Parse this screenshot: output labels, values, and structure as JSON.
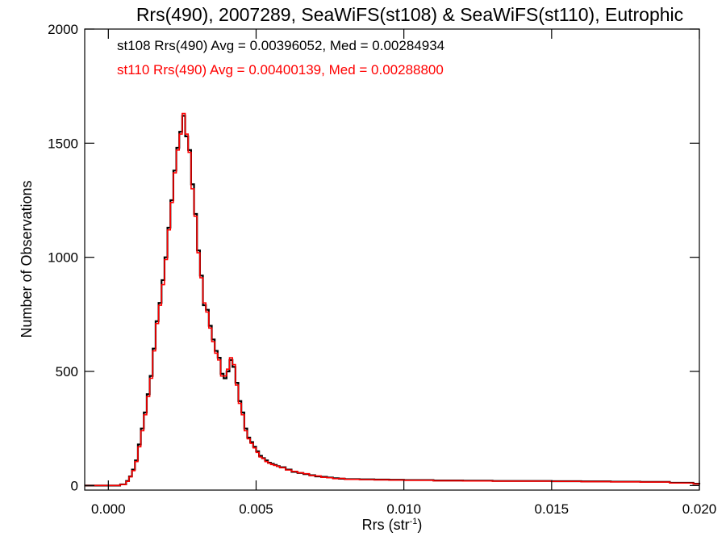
{
  "chart_data": {
    "type": "line",
    "style": "step-histogram",
    "title": "Rrs(490), 2007289, SeaWiFS(st108) & SeaWiFS(st110), Eutrophic",
    "xlabel": "Rrs (str",
    "xlabel_sup": "-1",
    "xlabel_close": ")",
    "ylabel": "Number of Observations",
    "xlim": [
      -0.0008,
      0.02
    ],
    "ylim": [
      -20,
      2000
    ],
    "x_ticks": [
      0.0,
      0.005,
      0.01,
      0.015,
      0.02
    ],
    "x_tick_labels": [
      "0.000",
      "0.005",
      "0.010",
      "0.015",
      "0.020"
    ],
    "y_ticks": [
      0,
      500,
      1000,
      1500,
      2000
    ],
    "y_tick_labels": [
      "0",
      "500",
      "1000",
      "1500",
      "2000"
    ],
    "grid": false,
    "annotations": [
      {
        "text": "st108 Rrs(490) Avg = 0.00396052, Med = 0.00284934",
        "color": "#000000"
      },
      {
        "text": "st110 Rrs(490) Avg = 0.00400139, Med = 0.00288800",
        "color": "#ff0000"
      }
    ],
    "series": [
      {
        "color": "#000000",
        "x": [
          -0.0008,
          0.0004,
          0.0006,
          0.0007,
          0.0008,
          0.0009,
          0.001,
          0.0011,
          0.0012,
          0.0013,
          0.0014,
          0.0015,
          0.0016,
          0.0017,
          0.0018,
          0.0019,
          0.002,
          0.0021,
          0.0022,
          0.0023,
          0.0024,
          0.0025,
          0.0026,
          0.0027,
          0.0028,
          0.0029,
          0.003,
          0.0031,
          0.0032,
          0.0033,
          0.0034,
          0.0035,
          0.0036,
          0.0037,
          0.0038,
          0.0039,
          0.004,
          0.0041,
          0.0042,
          0.0043,
          0.0044,
          0.0045,
          0.0046,
          0.0047,
          0.0048,
          0.0049,
          0.005,
          0.0051,
          0.0052,
          0.0053,
          0.0054,
          0.0055,
          0.0056,
          0.0057,
          0.0058,
          0.006,
          0.0062,
          0.0064,
          0.0066,
          0.0068,
          0.007,
          0.0072,
          0.0074,
          0.0076,
          0.0078,
          0.008,
          0.0085,
          0.009,
          0.0095,
          0.01,
          0.011,
          0.012,
          0.013,
          0.014,
          0.015,
          0.016,
          0.017,
          0.018,
          0.019,
          0.0198,
          0.02
        ],
        "y": [
          0,
          5,
          20,
          40,
          70,
          110,
          180,
          250,
          320,
          400,
          480,
          600,
          720,
          800,
          900,
          1000,
          1130,
          1250,
          1380,
          1480,
          1550,
          1620,
          1530,
          1470,
          1320,
          1190,
          1030,
          920,
          790,
          770,
          700,
          640,
          590,
          560,
          490,
          470,
          500,
          550,
          520,
          450,
          370,
          320,
          250,
          210,
          190,
          170,
          150,
          130,
          120,
          110,
          100,
          95,
          90,
          85,
          80,
          70,
          60,
          55,
          50,
          45,
          40,
          38,
          35,
          32,
          30,
          28,
          27,
          26,
          25,
          24,
          22,
          21,
          20,
          20,
          19,
          18,
          17,
          16,
          12,
          8,
          6
        ]
      },
      {
        "color": "#ff0000",
        "x": [
          -0.0008,
          0.0004,
          0.0006,
          0.0007,
          0.0008,
          0.0009,
          0.001,
          0.0011,
          0.0012,
          0.0013,
          0.0014,
          0.0015,
          0.0016,
          0.0017,
          0.0018,
          0.0019,
          0.002,
          0.0021,
          0.0022,
          0.0023,
          0.0024,
          0.0025,
          0.0026,
          0.0027,
          0.0028,
          0.0029,
          0.003,
          0.0031,
          0.0032,
          0.0033,
          0.0034,
          0.0035,
          0.0036,
          0.0037,
          0.0038,
          0.0039,
          0.004,
          0.0041,
          0.0042,
          0.0043,
          0.0044,
          0.0045,
          0.0046,
          0.0047,
          0.0048,
          0.0049,
          0.005,
          0.0051,
          0.0052,
          0.0053,
          0.0054,
          0.0055,
          0.0056,
          0.0057,
          0.0058,
          0.006,
          0.0062,
          0.0064,
          0.0066,
          0.0068,
          0.007,
          0.0072,
          0.0074,
          0.0076,
          0.0078,
          0.008,
          0.0085,
          0.009,
          0.0095,
          0.01,
          0.011,
          0.012,
          0.013,
          0.014,
          0.015,
          0.016,
          0.017,
          0.018,
          0.019,
          0.0198,
          0.02
        ],
        "y": [
          0,
          4,
          18,
          38,
          65,
          105,
          170,
          240,
          310,
          390,
          470,
          590,
          710,
          790,
          880,
          990,
          1120,
          1240,
          1370,
          1470,
          1540,
          1630,
          1540,
          1460,
          1300,
          1180,
          1020,
          910,
          800,
          760,
          690,
          630,
          580,
          550,
          480,
          480,
          510,
          560,
          530,
          440,
          360,
          310,
          240,
          205,
          185,
          165,
          145,
          125,
          118,
          105,
          98,
          92,
          88,
          84,
          78,
          68,
          62,
          56,
          52,
          44,
          42,
          36,
          34,
          30,
          31,
          27,
          26,
          25,
          24,
          23,
          21,
          20,
          19,
          19,
          18,
          17,
          16,
          15,
          11,
          7,
          5
        ]
      }
    ]
  }
}
